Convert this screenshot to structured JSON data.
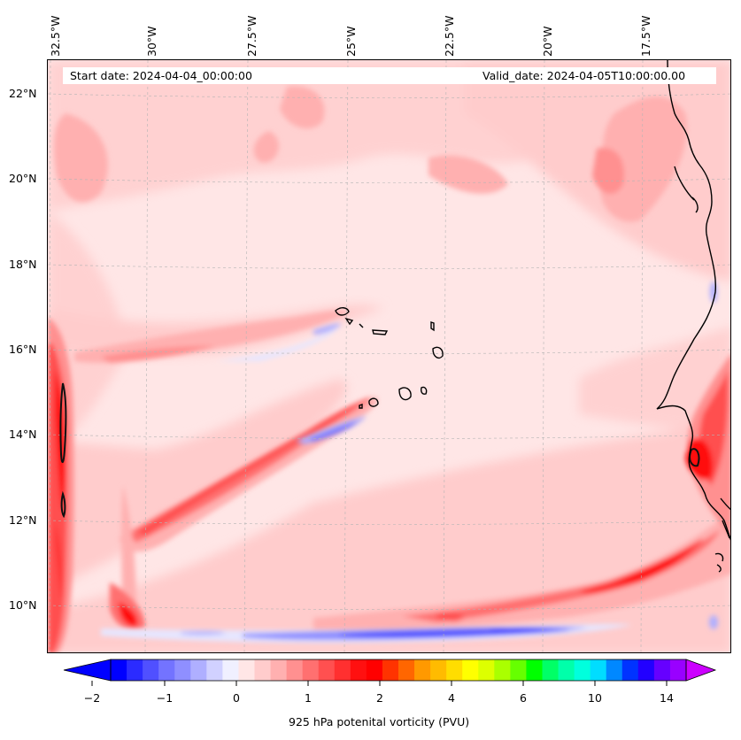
{
  "map": {
    "start_label": "Start date: 2024-04-04_00:00:00",
    "valid_label": "Valid_date: 2024-04-05T10:00:00.00",
    "lon_labels": [
      "32.5°W",
      "30°W",
      "27.5°W",
      "25°W",
      "22.5°W",
      "20°W",
      "17.5°W"
    ],
    "lat_labels": [
      "22°N",
      "20°N",
      "18°N",
      "16°N",
      "14°N",
      "12°N",
      "10°N"
    ]
  },
  "colorbar": {
    "label": "925 hPa potenital vorticity (PVU)",
    "ticks": [
      "−2",
      "−1",
      "0",
      "1",
      "2",
      "4",
      "6",
      "10",
      "14"
    ],
    "colors": [
      "#0000ff",
      "#2b2bff",
      "#5050ff",
      "#7373ff",
      "#8f8fff",
      "#afafff",
      "#d1d1ff",
      "#f0f0ff",
      "#ffe6e6",
      "#ffcccc",
      "#ffb0b0",
      "#ff9090",
      "#ff7070",
      "#ff5050",
      "#ff3030",
      "#ff1010",
      "#ff0000",
      "#ff3300",
      "#ff6600",
      "#ff9900",
      "#ffbb00",
      "#ffdd00",
      "#ffff00",
      "#ddff00",
      "#aaff00",
      "#66ff00",
      "#00ff00",
      "#00ff66",
      "#00ffaa",
      "#00ffdd",
      "#00ddff",
      "#0088ff",
      "#0033ff",
      "#2200ff",
      "#6600ff",
      "#9900ff"
    ],
    "colors_under": "#0000ff",
    "colors_over": "#cc00ff"
  }
}
